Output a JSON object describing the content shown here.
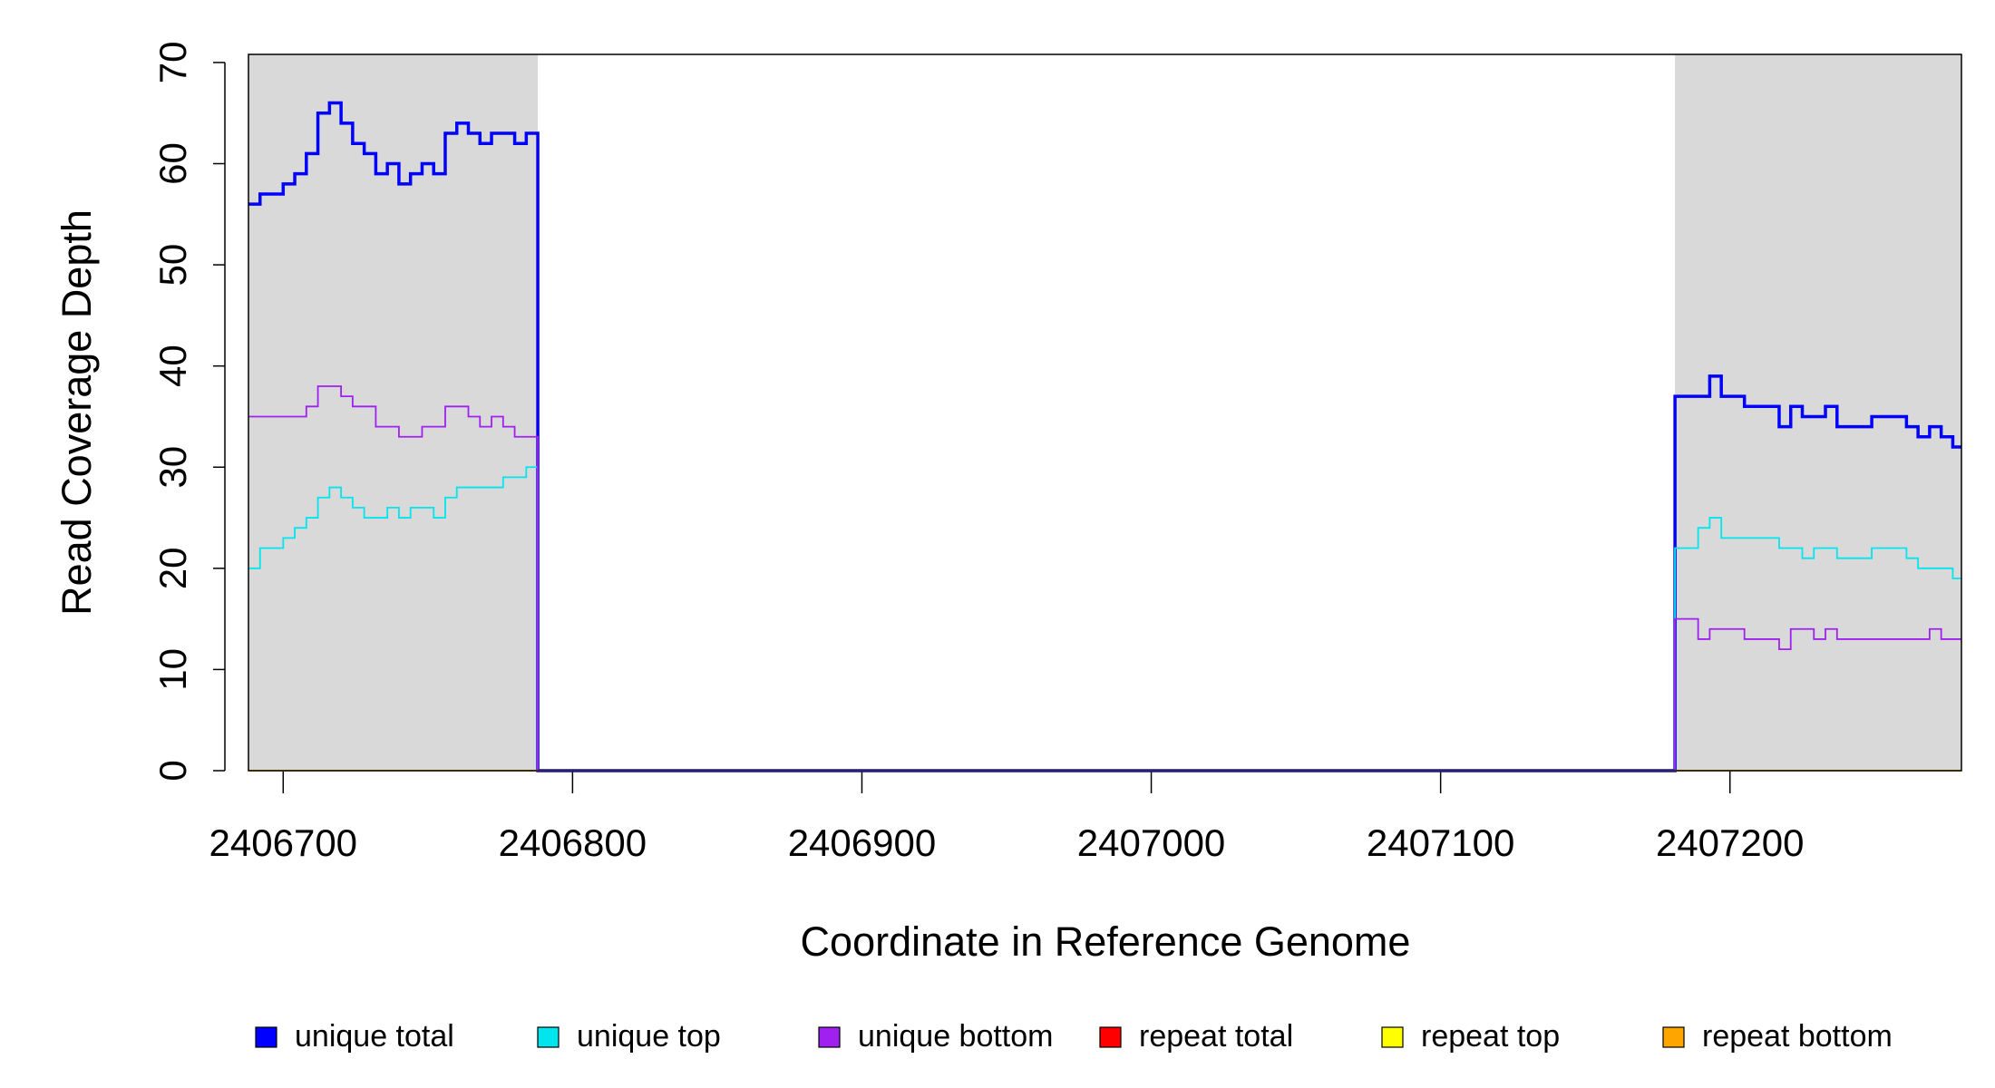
{
  "chart_data": {
    "type": "line",
    "drawstyle": "steps-post",
    "xlabel": "Coordinate in Reference Genome",
    "ylabel": "Read Coverage Depth",
    "xlim": [
      2406688,
      2407280
    ],
    "ylim": [
      0,
      70.8
    ],
    "xticks": [
      2406700,
      2406800,
      2406900,
      2407000,
      2407100,
      2407200
    ],
    "yticks": [
      0,
      10,
      20,
      30,
      40,
      50,
      60,
      70
    ],
    "shaded_regions": [
      {
        "x": [
          2406688,
          2406788
        ],
        "color": "#d9d9d9"
      },
      {
        "x": [
          2407181,
          2407280
        ],
        "color": "#d9d9d9"
      }
    ],
    "legend": "bottom",
    "x": [
      2406688,
      2406692,
      2406696,
      2406700,
      2406704,
      2406708,
      2406712,
      2406716,
      2406720,
      2406724,
      2406728,
      2406732,
      2406736,
      2406740,
      2406744,
      2406748,
      2406752,
      2406756,
      2406760,
      2406764,
      2406768,
      2406772,
      2406776,
      2406780,
      2406784,
      2406788,
      2407181,
      2407185,
      2407189,
      2407193,
      2407197,
      2407201,
      2407205,
      2407209,
      2407213,
      2407217,
      2407221,
      2407225,
      2407229,
      2407233,
      2407237,
      2407241,
      2407245,
      2407249,
      2407253,
      2407257,
      2407261,
      2407265,
      2407269,
      2407273,
      2407277,
      2407280
    ],
    "series": [
      {
        "name": "unique total",
        "color": "#0000ff",
        "width": 3.5,
        "values": [
          56,
          57,
          57,
          58,
          59,
          61,
          65,
          66,
          64,
          62,
          61,
          59,
          60,
          58,
          59,
          60,
          59,
          63,
          64,
          63,
          62,
          63,
          63,
          62,
          63,
          0,
          37,
          37,
          37,
          39,
          37,
          37,
          36,
          36,
          36,
          34,
          36,
          35,
          35,
          36,
          34,
          34,
          34,
          35,
          35,
          35,
          34,
          33,
          34,
          33,
          32,
          32
        ]
      },
      {
        "name": "unique top",
        "color": "#00e5ee",
        "width": 1.8,
        "values": [
          20,
          22,
          22,
          23,
          24,
          25,
          27,
          28,
          27,
          26,
          25,
          25,
          26,
          25,
          26,
          26,
          25,
          27,
          28,
          28,
          28,
          28,
          29,
          29,
          30,
          0,
          22,
          22,
          24,
          25,
          23,
          23,
          23,
          23,
          23,
          22,
          22,
          21,
          22,
          22,
          21,
          21,
          21,
          22,
          22,
          22,
          21,
          20,
          20,
          20,
          19,
          19
        ]
      },
      {
        "name": "unique bottom",
        "color": "#a020f0",
        "width": 1.8,
        "values": [
          35,
          35,
          35,
          35,
          35,
          36,
          38,
          38,
          37,
          36,
          36,
          34,
          34,
          33,
          33,
          34,
          34,
          36,
          36,
          35,
          34,
          35,
          34,
          33,
          33,
          0,
          15,
          15,
          13,
          14,
          14,
          14,
          13,
          13,
          13,
          12,
          14,
          14,
          13,
          14,
          13,
          13,
          13,
          13,
          13,
          13,
          13,
          13,
          14,
          13,
          13,
          13
        ]
      },
      {
        "name": "repeat total",
        "color": "#ff0000",
        "width": 1.8,
        "values": [
          0,
          0,
          0,
          0,
          0,
          0,
          0,
          0,
          0,
          0,
          0,
          0,
          0,
          0,
          0,
          0,
          0,
          0,
          0,
          0,
          0,
          0,
          0,
          0,
          0,
          0,
          0,
          0,
          0,
          0,
          0,
          0,
          0,
          0,
          0,
          0,
          0,
          0,
          0,
          0,
          0,
          0,
          0,
          0,
          0,
          0,
          0,
          0,
          0,
          0,
          0,
          0
        ]
      },
      {
        "name": "repeat top",
        "color": "#ffff00",
        "width": 1.8,
        "values": [
          0,
          0,
          0,
          0,
          0,
          0,
          0,
          0,
          0,
          0,
          0,
          0,
          0,
          0,
          0,
          0,
          0,
          0,
          0,
          0,
          0,
          0,
          0,
          0,
          0,
          0,
          0,
          0,
          0,
          0,
          0,
          0,
          0,
          0,
          0,
          0,
          0,
          0,
          0,
          0,
          0,
          0,
          0,
          0,
          0,
          0,
          0,
          0,
          0,
          0,
          0,
          0
        ]
      },
      {
        "name": "repeat bottom",
        "color": "#ffa500",
        "width": 1.8,
        "values": [
          0,
          0,
          0,
          0,
          0,
          0,
          0,
          0,
          0,
          0,
          0,
          0,
          0,
          0,
          0,
          0,
          0,
          0,
          0,
          0,
          0,
          0,
          0,
          0,
          0,
          0,
          0,
          0,
          0,
          0,
          0,
          0,
          0,
          0,
          0,
          0,
          0,
          0,
          0,
          0,
          0,
          0,
          0,
          0,
          0,
          0,
          0,
          0,
          0,
          0,
          0,
          0
        ]
      }
    ]
  }
}
